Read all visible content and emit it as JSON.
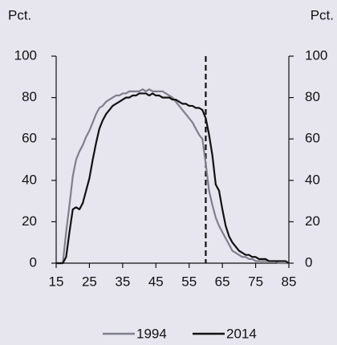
{
  "chart_data": {
    "type": "line",
    "y_label": "Pct.",
    "y2_label": "Pct.",
    "x": [
      15,
      16,
      17,
      18,
      19,
      20,
      21,
      22,
      23,
      24,
      25,
      26,
      27,
      28,
      29,
      30,
      31,
      32,
      33,
      34,
      35,
      36,
      37,
      38,
      39,
      40,
      41,
      42,
      43,
      44,
      45,
      46,
      47,
      48,
      49,
      50,
      51,
      52,
      53,
      54,
      55,
      56,
      57,
      58,
      59,
      60,
      61,
      62,
      63,
      64,
      65,
      66,
      67,
      68,
      69,
      70,
      71,
      72,
      73,
      74,
      75,
      76,
      77,
      78,
      79,
      80,
      81,
      82,
      83,
      84,
      85
    ],
    "series": [
      {
        "name": "1994",
        "color": "#7f7f8c",
        "values": [
          0,
          0,
          0,
          15,
          28,
          42,
          50,
          54,
          57,
          61,
          64,
          68,
          72,
          75,
          76,
          78,
          79,
          80,
          81,
          81,
          82,
          82,
          83,
          83,
          83,
          83,
          84,
          83,
          84,
          83,
          83,
          83,
          83,
          82,
          81,
          80,
          78,
          76,
          74,
          72,
          70,
          68,
          65,
          62,
          60,
          48,
          35,
          28,
          22,
          18,
          15,
          12,
          9,
          6,
          5,
          4,
          3,
          3,
          2,
          2,
          1,
          1,
          1,
          1,
          1,
          1,
          1,
          0,
          0,
          0,
          0
        ]
      },
      {
        "name": "2014",
        "color": "#111111",
        "values": [
          0,
          0,
          0,
          3,
          15,
          26,
          27,
          26,
          29,
          35,
          41,
          50,
          58,
          65,
          69,
          72,
          74,
          76,
          77,
          78,
          79,
          80,
          80,
          81,
          81,
          82,
          82,
          82,
          81,
          82,
          81,
          81,
          80,
          80,
          80,
          79,
          79,
          78,
          77,
          77,
          76,
          76,
          75,
          75,
          74,
          70,
          62,
          52,
          38,
          35,
          26,
          18,
          13,
          10,
          8,
          6,
          5,
          4,
          4,
          3,
          3,
          2,
          2,
          2,
          1,
          1,
          1,
          1,
          1,
          1,
          0
        ]
      }
    ],
    "xlim": [
      15,
      85
    ],
    "xticks": [
      15,
      25,
      35,
      45,
      55,
      65,
      75,
      85
    ],
    "ylim": [
      0,
      100
    ],
    "yticks": [
      0,
      20,
      40,
      60,
      80,
      100
    ],
    "y2lim": [
      0,
      100
    ],
    "y2ticks": [
      0,
      20,
      40,
      60,
      80,
      100
    ],
    "vline": 60,
    "legend": "bottom"
  }
}
